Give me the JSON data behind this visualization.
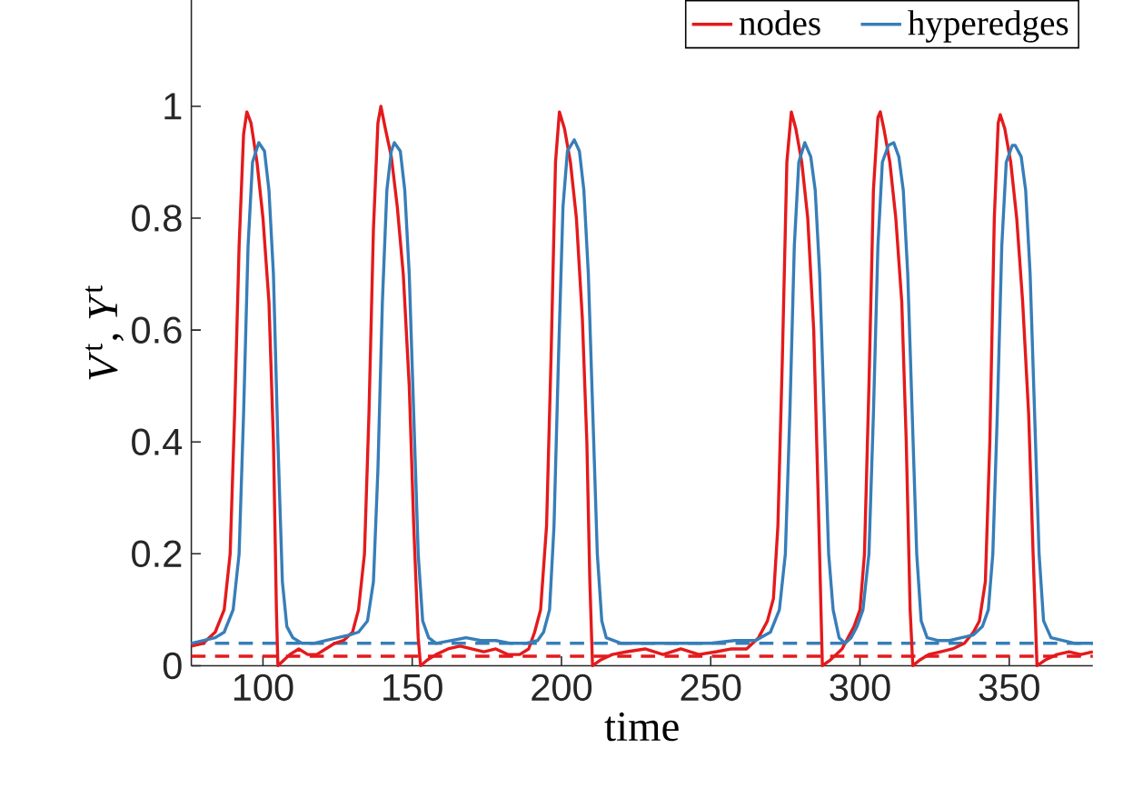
{
  "chart_data": {
    "type": "line",
    "xlabel": "time",
    "ylabel": "*V*$^{t}$, *Y*$^{t}$",
    "xlim": [
      76,
      378
    ],
    "ylim": [
      0,
      1.19
    ],
    "xticks": [
      100,
      150,
      200,
      250,
      300,
      350
    ],
    "yticks": [
      0,
      0.2,
      0.4,
      0.6,
      0.8,
      1
    ],
    "legend": "top right",
    "series": [
      {
        "name": "nodes",
        "color": "#e41a1c",
        "x": [
          76,
          80,
          84,
          87,
          89,
          90.5,
          92,
          93.5,
          94.6,
          96,
          98,
          100,
          102,
          103.5,
          104.5,
          105,
          107,
          109,
          112,
          115,
          118,
          121,
          124,
          127,
          130,
          132,
          134,
          135.5,
          137,
          138.5,
          139.5,
          141,
          143,
          145,
          147,
          149,
          150.5,
          152,
          152.8,
          155,
          158,
          162,
          166,
          170,
          174,
          178,
          182,
          186,
          189,
          191,
          193,
          195,
          196.5,
          198,
          199.3,
          201,
          203,
          205,
          207,
          208.5,
          209.5,
          210.4,
          213,
          217,
          222,
          228,
          234,
          240,
          246,
          252,
          257,
          262,
          266,
          269,
          271,
          272.5,
          274,
          275.5,
          277,
          278.5,
          280.5,
          282.5,
          284.5,
          286,
          287.4,
          290,
          292,
          294,
          296,
          298,
          300,
          301.5,
          303,
          304.5,
          306,
          306.8,
          308,
          310,
          312,
          314,
          315.5,
          316.8,
          317.7,
          320,
          323,
          327,
          331,
          335,
          338,
          340,
          342,
          343.5,
          345,
          346.3,
          347,
          348.5,
          350.5,
          352.5,
          354.5,
          356.5,
          358,
          359.3,
          362,
          366,
          370,
          374,
          378
        ],
        "values": [
          0.035,
          0.04,
          0.06,
          0.1,
          0.2,
          0.45,
          0.75,
          0.95,
          0.99,
          0.97,
          0.9,
          0.8,
          0.65,
          0.4,
          0.1,
          0.0,
          0.01,
          0.02,
          0.03,
          0.02,
          0.02,
          0.03,
          0.04,
          0.045,
          0.06,
          0.1,
          0.2,
          0.45,
          0.78,
          0.97,
          1.0,
          0.96,
          0.91,
          0.82,
          0.7,
          0.5,
          0.25,
          0.05,
          0.0,
          0.01,
          0.02,
          0.03,
          0.035,
          0.03,
          0.025,
          0.03,
          0.02,
          0.02,
          0.03,
          0.06,
          0.1,
          0.25,
          0.55,
          0.9,
          0.99,
          0.96,
          0.9,
          0.8,
          0.62,
          0.4,
          0.15,
          0.0,
          0.01,
          0.02,
          0.025,
          0.03,
          0.02,
          0.03,
          0.02,
          0.025,
          0.03,
          0.03,
          0.05,
          0.08,
          0.12,
          0.25,
          0.55,
          0.9,
          0.99,
          0.96,
          0.9,
          0.8,
          0.6,
          0.3,
          0.0,
          0.01,
          0.02,
          0.03,
          0.05,
          0.07,
          0.1,
          0.2,
          0.5,
          0.85,
          0.98,
          0.99,
          0.96,
          0.9,
          0.8,
          0.65,
          0.4,
          0.1,
          0.0,
          0.01,
          0.02,
          0.025,
          0.03,
          0.04,
          0.06,
          0.08,
          0.15,
          0.4,
          0.8,
          0.97,
          0.985,
          0.96,
          0.9,
          0.8,
          0.65,
          0.45,
          0.2,
          0.0,
          0.01,
          0.02,
          0.025,
          0.02,
          0.025
        ]
      },
      {
        "name": "hyperedges",
        "color": "#377eb8",
        "x": [
          76,
          80,
          84,
          87,
          90,
          92,
          93.5,
          95,
          96.5,
          98.6,
          100.5,
          102,
          103.5,
          105,
          106.5,
          108,
          110,
          113,
          117,
          121,
          125,
          129,
          132,
          135,
          137,
          138.5,
          140,
          141.5,
          143,
          144,
          146,
          147.5,
          149,
          150.5,
          152,
          153.5,
          155.5,
          158,
          163,
          168,
          173,
          178,
          183,
          188,
          192,
          194,
          196,
          197.5,
          199,
          200.5,
          202,
          204.3,
          206,
          207.5,
          209,
          210.5,
          212,
          213.5,
          215,
          220,
          230,
          240,
          250,
          258,
          265,
          270,
          273,
          275,
          276.5,
          278,
          279.5,
          281.5,
          283.5,
          285,
          286.5,
          288,
          289.5,
          291,
          293,
          295,
          297,
          299,
          301,
          303,
          304.5,
          306,
          307.5,
          309.5,
          311.3,
          313,
          314.5,
          316,
          317.5,
          319,
          320.5,
          322.5,
          326,
          330,
          334,
          338,
          341,
          343,
          344.5,
          346,
          347.5,
          349,
          351,
          352,
          354,
          355.5,
          357,
          358.5,
          360,
          361.5,
          364,
          368,
          372,
          378
        ],
        "values": [
          0.04,
          0.045,
          0.05,
          0.06,
          0.1,
          0.2,
          0.45,
          0.75,
          0.9,
          0.935,
          0.92,
          0.85,
          0.7,
          0.4,
          0.15,
          0.07,
          0.05,
          0.04,
          0.04,
          0.045,
          0.05,
          0.055,
          0.06,
          0.08,
          0.15,
          0.35,
          0.65,
          0.85,
          0.92,
          0.935,
          0.92,
          0.85,
          0.7,
          0.45,
          0.2,
          0.08,
          0.05,
          0.04,
          0.045,
          0.05,
          0.045,
          0.045,
          0.04,
          0.04,
          0.045,
          0.06,
          0.1,
          0.25,
          0.55,
          0.82,
          0.92,
          0.94,
          0.92,
          0.85,
          0.7,
          0.45,
          0.2,
          0.08,
          0.05,
          0.04,
          0.04,
          0.04,
          0.04,
          0.045,
          0.045,
          0.06,
          0.1,
          0.2,
          0.45,
          0.75,
          0.9,
          0.935,
          0.91,
          0.85,
          0.7,
          0.45,
          0.2,
          0.1,
          0.05,
          0.04,
          0.05,
          0.07,
          0.1,
          0.2,
          0.45,
          0.75,
          0.9,
          0.93,
          0.935,
          0.91,
          0.85,
          0.7,
          0.45,
          0.2,
          0.08,
          0.05,
          0.045,
          0.045,
          0.05,
          0.055,
          0.07,
          0.1,
          0.2,
          0.45,
          0.75,
          0.9,
          0.93,
          0.93,
          0.91,
          0.85,
          0.7,
          0.45,
          0.2,
          0.08,
          0.05,
          0.045,
          0.04,
          0.04
        ]
      }
    ],
    "ref_lines": [
      {
        "axis": "y",
        "value": 0.017,
        "color": "#e41a1c",
        "line_style": "dashed"
      },
      {
        "axis": "y",
        "value": 0.04,
        "color": "#377eb8",
        "line_style": "dashed"
      }
    ]
  }
}
